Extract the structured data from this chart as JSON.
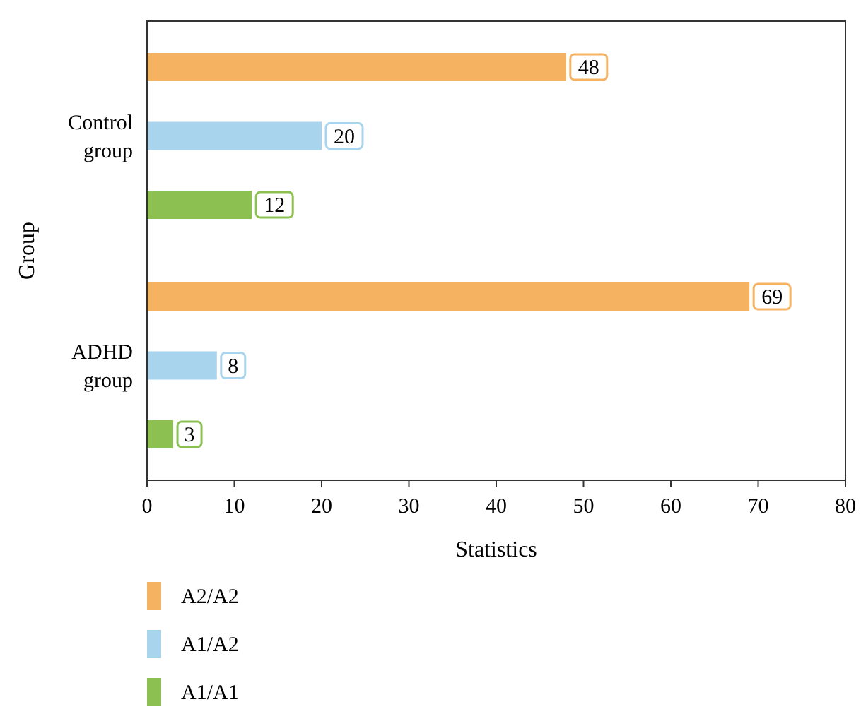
{
  "chart_data": {
    "type": "bar",
    "orientation": "horizontal",
    "xlabel": "Statistics",
    "ylabel": "Group",
    "categories": [
      "Control\ngroup",
      "ADHD\ngroup"
    ],
    "series": [
      {
        "name": "A2/A2",
        "color": "#f5b362",
        "values": [
          48,
          69
        ]
      },
      {
        "name": "A1/A2",
        "color": "#a8d4ee",
        "values": [
          20,
          8
        ]
      },
      {
        "name": "A1/A1",
        "color": "#8cc152",
        "values": [
          12,
          3
        ]
      }
    ],
    "xlim": [
      0,
      80
    ],
    "xticks": [
      0,
      10,
      20,
      30,
      40,
      50,
      60,
      70,
      80
    ],
    "data_labels": true,
    "legend": "bottom",
    "grid": false
  }
}
